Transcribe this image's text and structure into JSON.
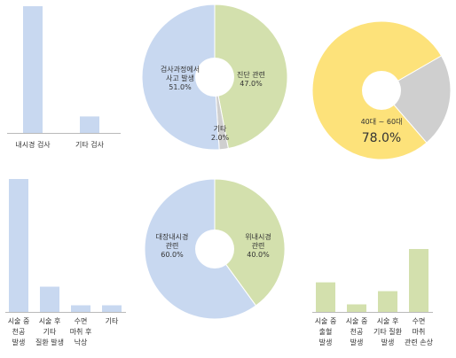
{
  "colors": {
    "blue": "#c8d8f0",
    "green": "#d3e0ad",
    "gray": "#cfcfcf",
    "yellow": "#fde27a",
    "axis": "#b9b9b9"
  },
  "chart_data": [
    {
      "type": "bar",
      "categories": [
        "내시경 검사",
        "기타 검사"
      ],
      "values": [
        100,
        13
      ],
      "ylim": [
        0,
        100
      ],
      "color": "blue"
    },
    {
      "type": "pie",
      "slices": [
        {
          "label_lines": [
            "진단 관련",
            "47.0%"
          ],
          "value": 47.0,
          "color": "green"
        },
        {
          "label_lines": [
            "기타",
            "2.0%"
          ],
          "value": 2.0,
          "color": "gray"
        },
        {
          "label_lines": [
            "검사과정에서",
            "사고 발생",
            "51.0%"
          ],
          "value": 51.0,
          "color": "blue"
        }
      ]
    },
    {
      "type": "pie",
      "slices": [
        {
          "label_lines": [],
          "value": 78.0,
          "color": "yellow"
        },
        {
          "label_lines": [],
          "value": 22.0,
          "color": "gray"
        }
      ],
      "center_label": "40대 ~ 60대",
      "center_value": "78.0%"
    },
    {
      "type": "bar",
      "categories": [
        [
          "시술 중",
          "천공",
          "발생"
        ],
        [
          "시술 후",
          "기타",
          "질환 발생"
        ],
        [
          "수면",
          "마취 후",
          "낙상"
        ],
        [
          "기타"
        ]
      ],
      "values": [
        100,
        19,
        5,
        5
      ],
      "ylim": [
        0,
        100
      ],
      "color": "blue"
    },
    {
      "type": "pie",
      "slices": [
        {
          "label_lines": [
            "위내시경",
            "관련",
            "40.0%"
          ],
          "value": 40.0,
          "color": "green"
        },
        {
          "label_lines": [
            "대장내시경",
            "관련",
            "60.0%"
          ],
          "value": 60.0,
          "color": "blue"
        }
      ]
    },
    {
      "type": "bar",
      "categories": [
        [
          "시술 중",
          "출혈",
          "발생"
        ],
        [
          "시술 중",
          "천공",
          "발생"
        ],
        [
          "시술 후",
          "기타 질환",
          "발생"
        ],
        [
          "수면",
          "마취",
          "관련 손상"
        ]
      ],
      "values": [
        47,
        12,
        33,
        100
      ],
      "ylim": [
        0,
        100
      ],
      "color": "green"
    }
  ]
}
